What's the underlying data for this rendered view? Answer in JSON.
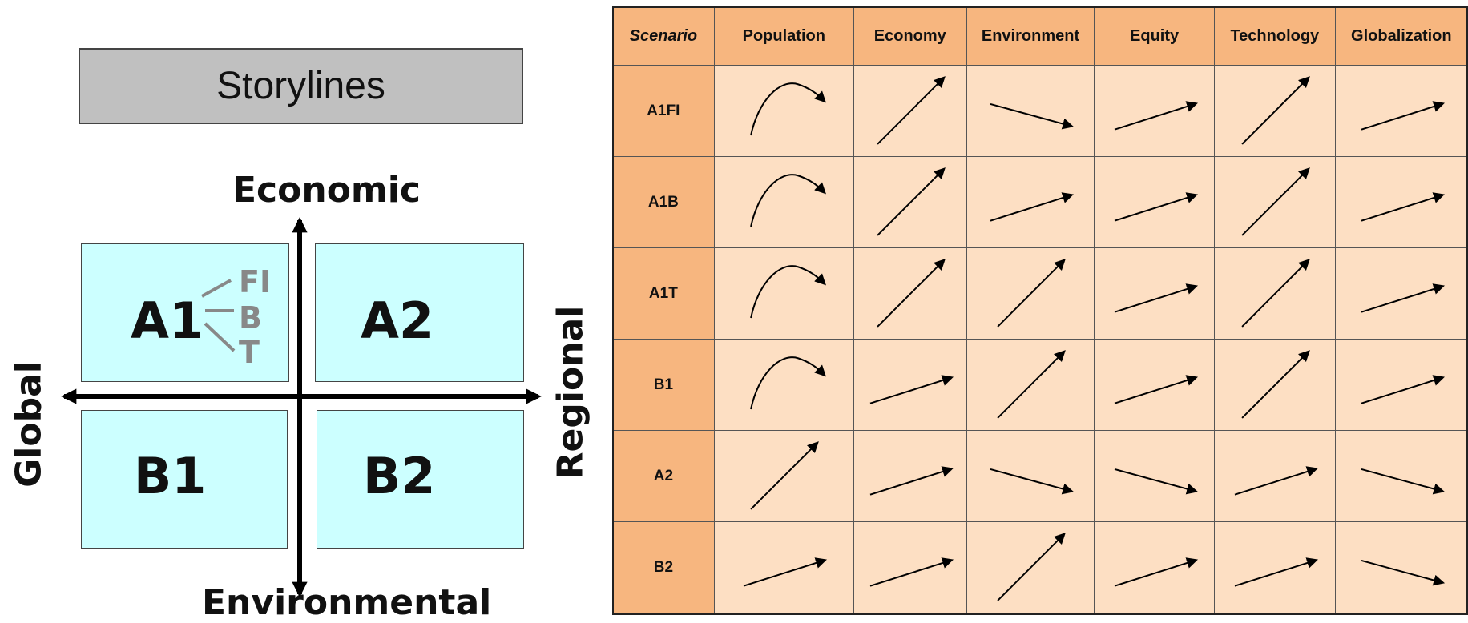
{
  "storylines": {
    "title": "Storylines",
    "axes": {
      "top": "Economic",
      "bottom": "Environmental",
      "left": "Global",
      "right": "Regional"
    },
    "quadrants": {
      "top_left": "A1",
      "top_right": "A2",
      "bottom_left": "B1",
      "bottom_right": "B2"
    },
    "a1_variants": [
      "FI",
      "B",
      "T"
    ]
  },
  "table": {
    "headers": [
      "Scenario",
      "Population",
      "Economy",
      "Environment",
      "Equity",
      "Technology",
      "Globalization"
    ],
    "rows": [
      {
        "scenario": "A1FI",
        "trends": [
          "rise-fall",
          "steep-up",
          "down",
          "up",
          "steep-up",
          "up"
        ]
      },
      {
        "scenario": "A1B",
        "trends": [
          "rise-fall",
          "steep-up",
          "up",
          "up",
          "steep-up",
          "up"
        ]
      },
      {
        "scenario": "A1T",
        "trends": [
          "rise-fall",
          "steep-up",
          "steep-up",
          "up",
          "steep-up",
          "up"
        ]
      },
      {
        "scenario": "B1",
        "trends": [
          "rise-fall",
          "up",
          "steep-up",
          "up",
          "steep-up",
          "up"
        ]
      },
      {
        "scenario": "A2",
        "trends": [
          "steep-up",
          "up",
          "down",
          "down",
          "up",
          "down"
        ]
      },
      {
        "scenario": "B2",
        "trends": [
          "up",
          "up",
          "steep-up",
          "up",
          "up",
          "down"
        ]
      }
    ]
  },
  "colors": {
    "quadrant_fill": "#ccffff",
    "header_fill": "#f7b67f",
    "cell_fill": "#fddfc3",
    "variant_text": "#888888"
  }
}
